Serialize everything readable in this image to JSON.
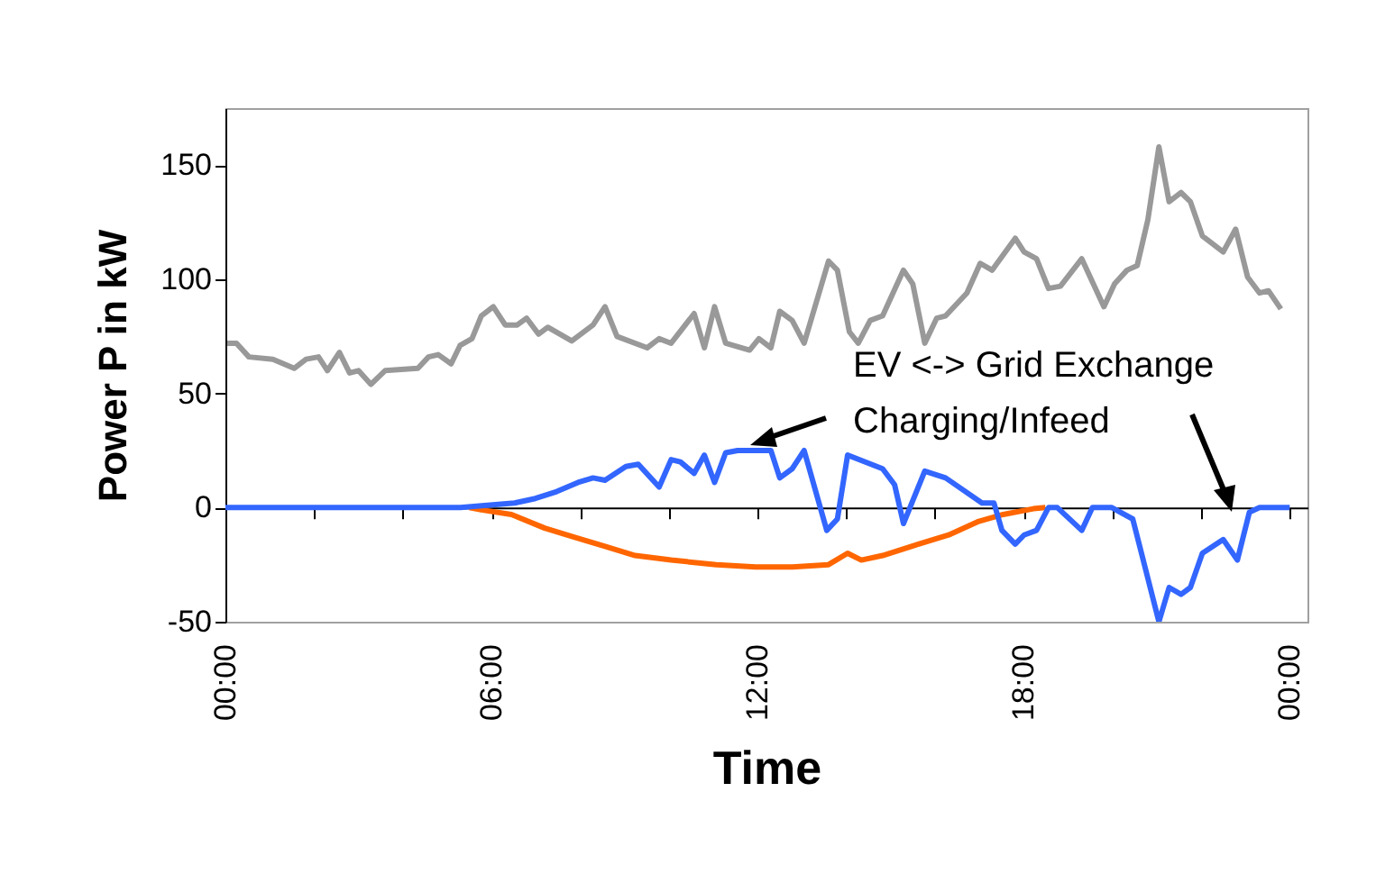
{
  "chart_data": {
    "type": "line",
    "xlabel": "Time",
    "ylabel": "Power P in kW",
    "xlim": [
      0,
      24.4
    ],
    "ylim": [
      -50,
      175
    ],
    "xticks": [
      {
        "value": 0,
        "label": "00:00"
      },
      {
        "value": 2,
        "label": null
      },
      {
        "value": 4,
        "label": null
      },
      {
        "value": 6,
        "label": "06:00"
      },
      {
        "value": 8,
        "label": null
      },
      {
        "value": 10,
        "label": null
      },
      {
        "value": 12,
        "label": "12:00"
      },
      {
        "value": 14,
        "label": null
      },
      {
        "value": 16,
        "label": null
      },
      {
        "value": 18,
        "label": "18:00"
      },
      {
        "value": 20,
        "label": null
      },
      {
        "value": 22,
        "label": null
      },
      {
        "value": 24,
        "label": "00:00"
      }
    ],
    "yticks": [
      -50,
      0,
      50,
      100,
      150
    ],
    "annotations": [
      "EV <-> Grid Exchange",
      "Charging/Infeed"
    ],
    "series": [
      {
        "color": "#999999",
        "x": [
          0.04,
          0.25,
          0.53,
          1.07,
          1.55,
          1.82,
          2.1,
          2.3,
          2.57,
          2.8,
          3.0,
          3.28,
          3.6,
          4.34,
          4.58,
          4.8,
          5.09,
          5.29,
          5.56,
          5.77,
          6.04,
          6.31,
          6.58,
          6.79,
          7.06,
          7.27,
          7.81,
          8.29,
          8.56,
          8.83,
          9.51,
          9.78,
          10.05,
          10.57,
          10.8,
          11.03,
          11.28,
          11.82,
          12.03,
          12.3,
          12.5,
          12.78,
          13.05,
          13.6,
          13.8,
          14.07,
          14.27,
          14.54,
          14.82,
          15.29,
          15.5,
          15.77,
          16.04,
          16.24,
          16.72,
          17.02,
          17.29,
          17.81,
          18.01,
          18.29,
          18.56,
          18.83,
          19.31,
          19.81,
          20.05,
          20.33,
          20.56,
          20.8,
          21.05,
          21.28,
          21.55,
          21.76,
          22.03,
          22.5,
          22.78,
          23.05,
          23.32,
          23.52,
          23.8
        ],
        "values": [
          72,
          72,
          66,
          65,
          61,
          65,
          66,
          60,
          68,
          59,
          60,
          54,
          60,
          61,
          66,
          67,
          63,
          71,
          74,
          84,
          88,
          80,
          80,
          83,
          76,
          79,
          73,
          80,
          88,
          75,
          70,
          74,
          72,
          85,
          70,
          88,
          72,
          69,
          74,
          70,
          86,
          82,
          72,
          108,
          104,
          77,
          72,
          82,
          84,
          104,
          98,
          72,
          83,
          84,
          94,
          107,
          104,
          118,
          112,
          109,
          96,
          97,
          109,
          88,
          98,
          104,
          106,
          126,
          158,
          134,
          138,
          134,
          119,
          112,
          122,
          101,
          94,
          95,
          87
        ]
      },
      {
        "color": "#ff6600",
        "x": [
          5.5,
          5.77,
          6.45,
          7.2,
          7.88,
          8.56,
          9.24,
          10.05,
          11.07,
          11.96,
          12.78,
          13.6,
          14.03,
          14.34,
          14.82,
          15.63,
          16.31,
          16.99,
          17.54,
          18.22,
          18.49
        ],
        "values": [
          0,
          -1,
          -3,
          -9,
          -13,
          -17,
          -21,
          -23,
          -25,
          -26,
          -26,
          -25,
          -20,
          -23,
          -21,
          -16,
          -12,
          -6,
          -3,
          -0.5,
          0
        ]
      },
      {
        "color": "#3366ff",
        "x": [
          0,
          5.3,
          6.52,
          6.99,
          7.47,
          7.95,
          8.29,
          8.56,
          9.03,
          9.31,
          9.78,
          10.05,
          10.26,
          10.57,
          10.8,
          11.03,
          11.28,
          11.55,
          12.3,
          12.5,
          12.78,
          13.05,
          13.56,
          13.8,
          14.03,
          14.82,
          15.09,
          15.29,
          15.77,
          16.24,
          17.06,
          17.33,
          17.51,
          17.81,
          18.01,
          18.29,
          18.56,
          18.76,
          19.31,
          19.55,
          19.99,
          20.46,
          21.05,
          21.28,
          21.55,
          21.76,
          22.03,
          22.5,
          22.82,
          23.09,
          23.32,
          24.0
        ],
        "values": [
          0,
          0,
          2,
          4,
          7,
          11,
          13,
          12,
          18,
          19,
          9,
          21,
          20,
          15,
          23,
          11,
          24,
          25,
          25,
          13,
          17,
          25,
          -10,
          -5,
          23,
          17,
          10,
          -7,
          16,
          13,
          2,
          2,
          -10,
          -16,
          -12,
          -10,
          0,
          0,
          -10,
          0,
          0,
          -5,
          -50,
          -35,
          -38,
          -35,
          -20,
          -14,
          -23,
          -2,
          0,
          0
        ]
      }
    ]
  }
}
